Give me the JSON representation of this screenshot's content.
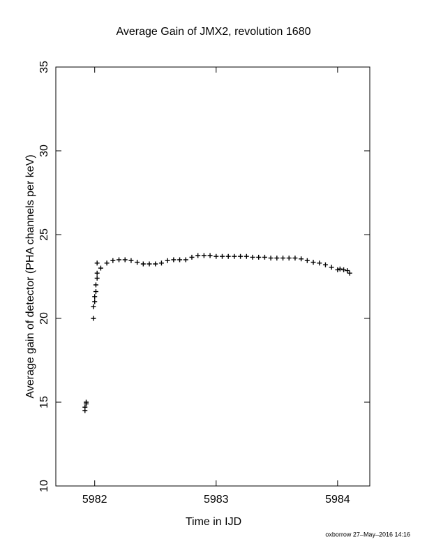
{
  "chart_data": {
    "type": "scatter",
    "title": "Average Gain of JMX2, revolution 1680",
    "x_label": "Time in IJD",
    "y_label": "Average gain of detector (PHA channels per keV)",
    "footer": "oxborrow 27–May–2016 14:16",
    "color": "#000000",
    "marker": "+",
    "xlim": [
      5981.68,
      5984.265
    ],
    "ylim": [
      10,
      35
    ],
    "xticks": [
      5982,
      5983,
      5984
    ],
    "yticks": [
      10,
      15,
      20,
      25,
      30,
      35
    ],
    "x": [
      5981.92,
      5981.92,
      5981.93,
      5981.93,
      5981.99,
      5981.99,
      5982.0,
      5982.0,
      5982.01,
      5982.01,
      5982.02,
      5982.02,
      5982.02,
      5982.05,
      5982.1,
      5982.15,
      5982.2,
      5982.25,
      5982.3,
      5982.35,
      5982.4,
      5982.45,
      5982.5,
      5982.55,
      5982.6,
      5982.65,
      5982.7,
      5982.75,
      5982.8,
      5982.85,
      5982.9,
      5982.95,
      5983.0,
      5983.05,
      5983.1,
      5983.15,
      5983.2,
      5983.25,
      5983.3,
      5983.35,
      5983.4,
      5983.45,
      5983.5,
      5983.55,
      5983.6,
      5983.65,
      5983.7,
      5983.75,
      5983.8,
      5983.85,
      5983.9,
      5983.95,
      5984.0,
      5984.02,
      5984.05,
      5984.08,
      5984.1
    ],
    "y": [
      14.5,
      14.7,
      14.9,
      15.0,
      20.0,
      20.7,
      21.0,
      21.3,
      21.6,
      22.0,
      22.4,
      23.3,
      22.7,
      23.0,
      23.3,
      23.45,
      23.5,
      23.5,
      23.45,
      23.35,
      23.25,
      23.25,
      23.25,
      23.3,
      23.45,
      23.5,
      23.5,
      23.5,
      23.65,
      23.75,
      23.75,
      23.75,
      23.7,
      23.7,
      23.7,
      23.7,
      23.7,
      23.7,
      23.65,
      23.65,
      23.65,
      23.6,
      23.6,
      23.6,
      23.6,
      23.6,
      23.55,
      23.45,
      23.35,
      23.3,
      23.2,
      23.05,
      22.9,
      22.95,
      22.9,
      22.85,
      22.7
    ]
  }
}
